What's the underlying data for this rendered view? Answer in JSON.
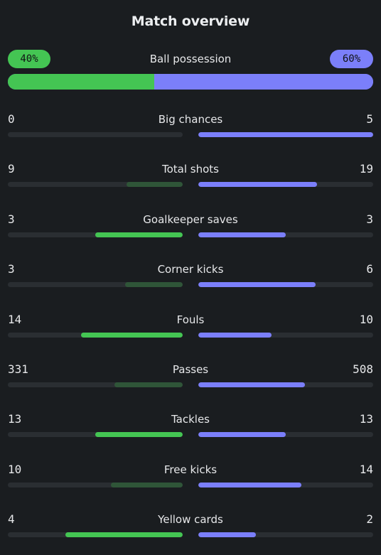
{
  "title": "Match overview",
  "colors": {
    "home": "#44c553",
    "home_dim": "#2f5538",
    "away": "#7b7ffa",
    "track": "#2a2e32"
  },
  "possession": {
    "label": "Ball possession",
    "home": 40,
    "away": 60,
    "home_text": "40%",
    "away_text": "60%"
  },
  "stats": [
    {
      "name": "Big chances",
      "home": "0",
      "away": "5",
      "home_fill": 0.0,
      "away_fill": 1.0
    },
    {
      "name": "Total shots",
      "home": "9",
      "away": "19",
      "home_fill": 0.32,
      "away_fill": 0.68
    },
    {
      "name": "Goalkeeper saves",
      "home": "3",
      "away": "3",
      "home_fill": 0.5,
      "away_fill": 0.5
    },
    {
      "name": "Corner kicks",
      "home": "3",
      "away": "6",
      "home_fill": 0.33,
      "away_fill": 0.67
    },
    {
      "name": "Fouls",
      "home": "14",
      "away": "10",
      "home_fill": 0.58,
      "away_fill": 0.42
    },
    {
      "name": "Passes",
      "home": "331",
      "away": "508",
      "home_fill": 0.39,
      "away_fill": 0.61
    },
    {
      "name": "Tackles",
      "home": "13",
      "away": "13",
      "home_fill": 0.5,
      "away_fill": 0.5
    },
    {
      "name": "Free kicks",
      "home": "10",
      "away": "14",
      "home_fill": 0.41,
      "away_fill": 0.59
    },
    {
      "name": "Yellow cards",
      "home": "4",
      "away": "2",
      "home_fill": 0.67,
      "away_fill": 0.33
    }
  ]
}
